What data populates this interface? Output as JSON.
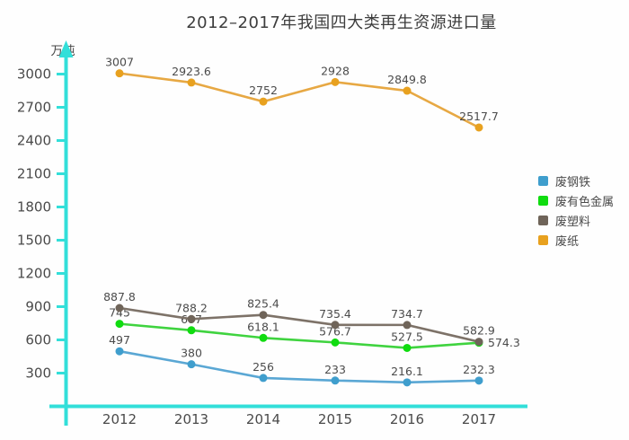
{
  "chart_data": {
    "type": "line",
    "title": "2012–2017年我国四大类再生资源进口量",
    "unit_label": "万吨",
    "categories": [
      "2012",
      "2013",
      "2014",
      "2015",
      "2016",
      "2017"
    ],
    "y_ticks": [
      300,
      600,
      900,
      1200,
      1500,
      1800,
      2100,
      2400,
      2700,
      3000
    ],
    "ylim": [
      0,
      3100
    ],
    "grid": false,
    "legend_position": "right",
    "axis_color": "#32dfd9",
    "text_color": "#4a4a4a",
    "series": [
      {
        "id": "scrap-steel",
        "name": "废钢铁",
        "color": "#5aa7d4",
        "dot_color": "#3f9ecd",
        "values": [
          497,
          380,
          256,
          233,
          216.1,
          232.3
        ]
      },
      {
        "id": "nonferrous-metal",
        "name": "废有色金属",
        "color": "#3fd33f",
        "dot_color": "#10dc10",
        "values": [
          745,
          687,
          618.1,
          576.7,
          527.5,
          574.3
        ],
        "last_label_side": "right"
      },
      {
        "id": "waste-plastic",
        "name": "废塑料",
        "color": "#7d7268",
        "dot_color": "#6f6459",
        "values": [
          887.8,
          788.2,
          825.4,
          735.4,
          734.7,
          582.9
        ]
      },
      {
        "id": "waste-paper",
        "name": "废纸",
        "color": "#e7a843",
        "dot_color": "#e8a11f",
        "values": [
          3007,
          2923.6,
          2752,
          2928,
          2849.8,
          2517.7
        ]
      }
    ]
  }
}
